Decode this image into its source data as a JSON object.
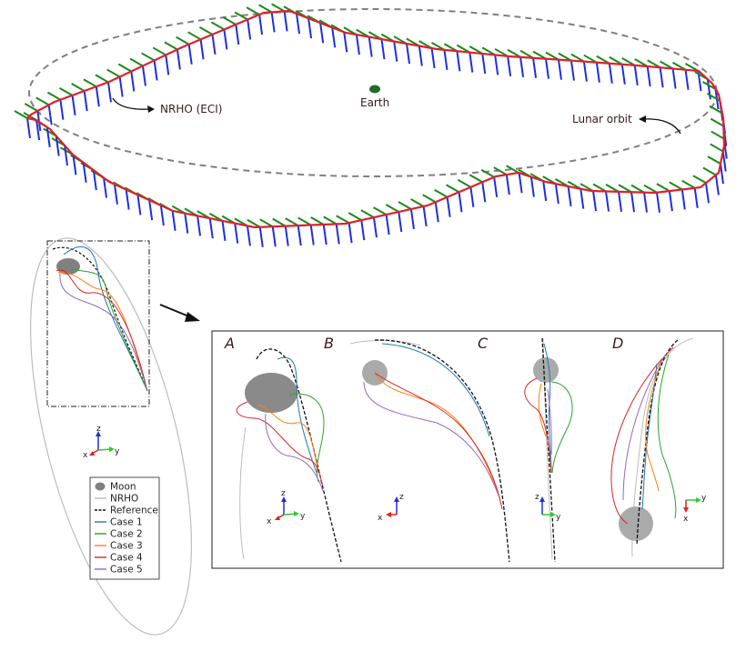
{
  "colors": {
    "nrho_path": "#e0202a",
    "ticks_blue": "#1f2ee0",
    "ticks_green": "#1a8a1a",
    "lunar_orbit": "#808080",
    "earth": "#1f6b2a",
    "moon": "#9a9a9a",
    "nrho_thin": "#bdbdbd",
    "reference": "#111111",
    "case1": "#1f77b4",
    "case2": "#2ca02c",
    "case3": "#ff7f0e",
    "case4": "#d62728",
    "case5": "#9467bd",
    "axis_z": "#1f2ee0",
    "axis_y": "#2ecc2e",
    "axis_x": "#e02020"
  },
  "top_panel": {
    "nrho_label": "NRHO (ECI)",
    "earth_label": "Earth",
    "lunar_orbit_label": "Lunar orbit"
  },
  "panels": {
    "A": "A",
    "B": "B",
    "C": "C",
    "D": "D"
  },
  "axes": {
    "z": "z",
    "y": "y",
    "x": "x"
  },
  "legend": {
    "items": [
      {
        "label": "Moon",
        "marker": "ellipse",
        "color_key": "moon"
      },
      {
        "label": "NRHO",
        "marker": "line",
        "color_key": "nrho_thin"
      },
      {
        "label": "Reference",
        "marker": "dash",
        "color_key": "reference"
      },
      {
        "label": "Case 1",
        "marker": "line",
        "color_key": "case1"
      },
      {
        "label": "Case 2",
        "marker": "line",
        "color_key": "case2"
      },
      {
        "label": "Case 3",
        "marker": "line",
        "color_key": "case3"
      },
      {
        "label": "Case 4",
        "marker": "line",
        "color_key": "case4"
      },
      {
        "label": "Case 5",
        "marker": "line",
        "color_key": "case5"
      }
    ]
  }
}
